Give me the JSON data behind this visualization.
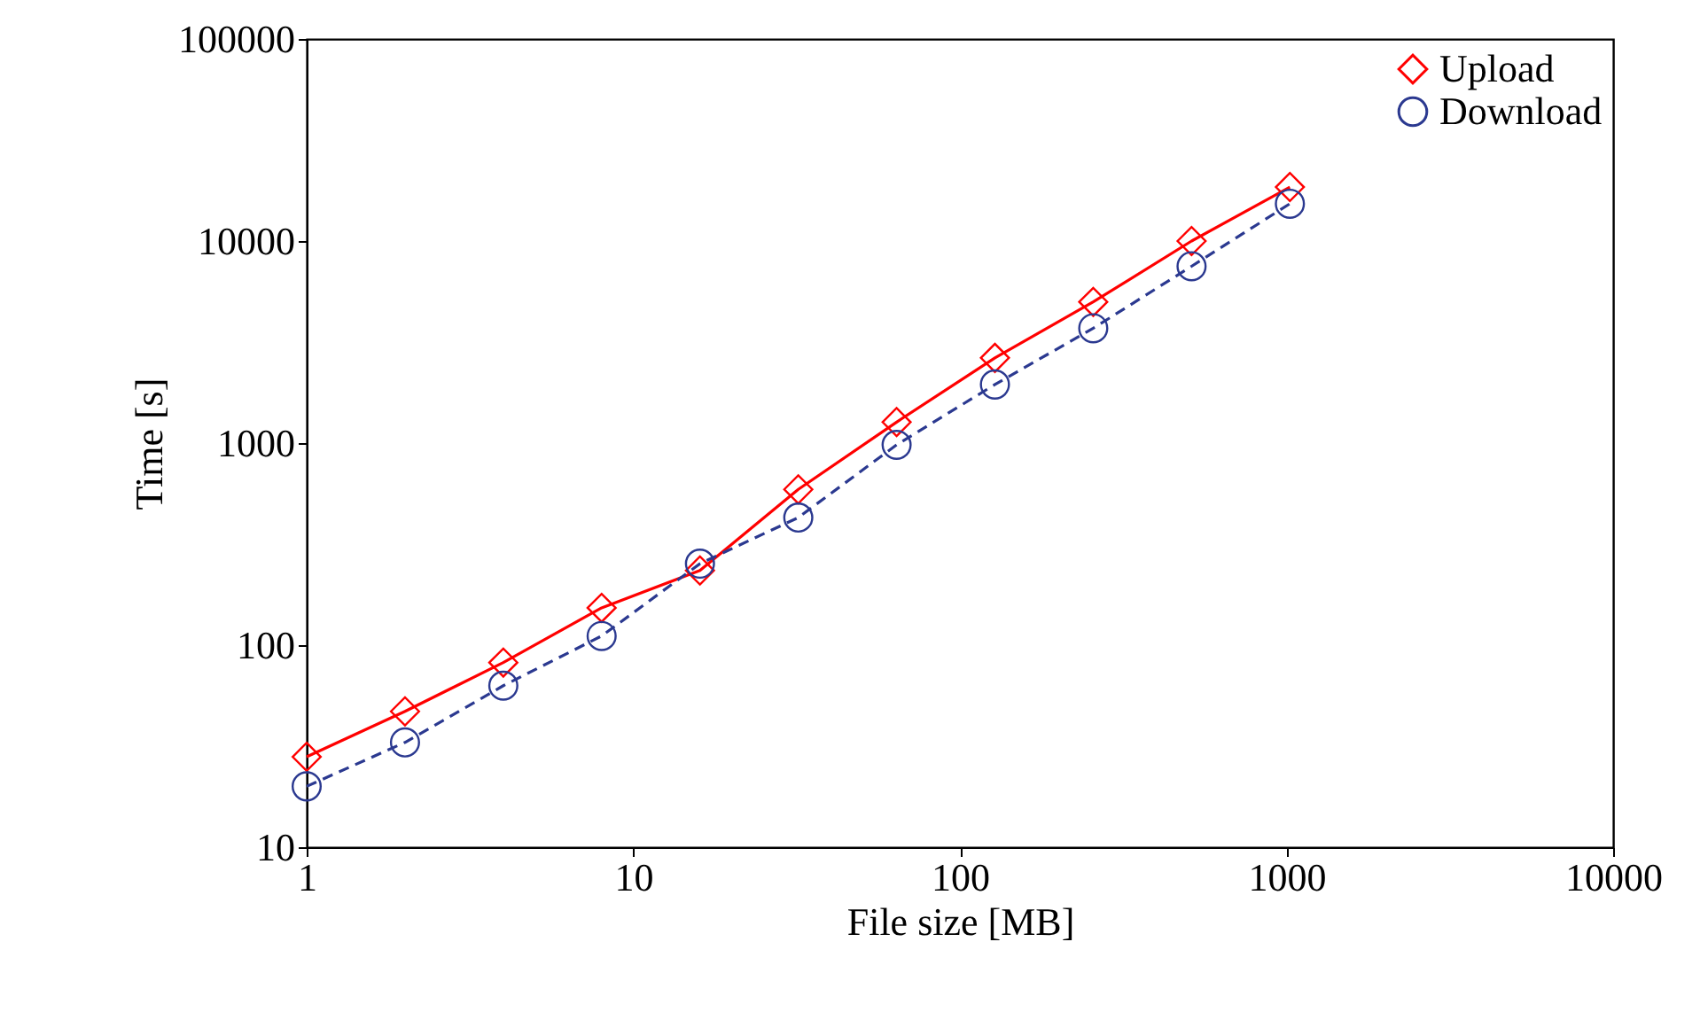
{
  "chart_data": {
    "type": "line",
    "xlabel": "File size [MB]",
    "ylabel": "Time [s]",
    "x": [
      1,
      2,
      4,
      8,
      16,
      32,
      64,
      128,
      256,
      512,
      1024
    ],
    "series": [
      {
        "name": "Upload",
        "color": "#ff0000",
        "marker": "diamond",
        "line_style": "solid",
        "values": [
          28,
          47,
          82,
          153,
          234,
          590,
          1270,
          2640,
          5000,
          10000,
          18500
        ]
      },
      {
        "name": "Download",
        "color": "#2b3990",
        "marker": "circle",
        "line_style": "dashed",
        "values": [
          20,
          33,
          63,
          111,
          253,
          428,
          980,
          1950,
          3700,
          7500,
          15300
        ]
      }
    ],
    "log": "xy",
    "xlim": [
      1,
      10000
    ],
    "ylim": [
      10,
      100000
    ],
    "xticks": [
      1,
      10,
      100,
      1000,
      10000
    ],
    "yticks": [
      10,
      100,
      1000,
      10000,
      100000
    ],
    "grid": false,
    "legend": "top right"
  }
}
